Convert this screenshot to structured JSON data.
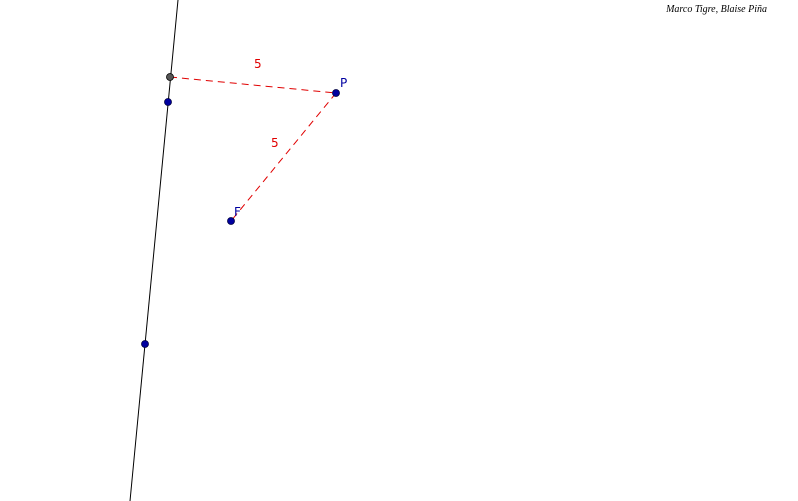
{
  "credit": "Marco Tigre, Blaise Piña",
  "points": [
    {
      "label": "P"
    },
    {
      "label": "F"
    }
  ],
  "segments": [
    {
      "length": 5
    },
    {
      "length": 5
    }
  ]
}
